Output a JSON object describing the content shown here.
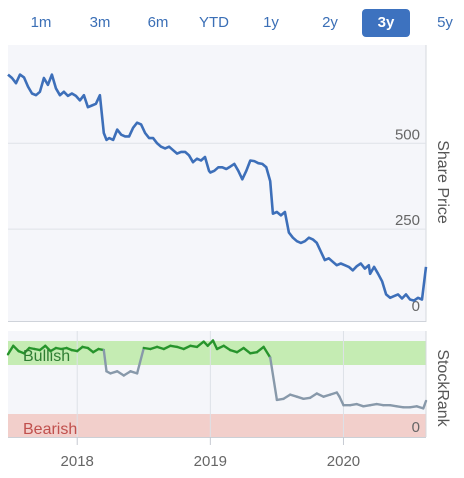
{
  "range_tabs": {
    "items": [
      "1m",
      "3m",
      "6m",
      "YTD",
      "1y",
      "2y",
      "3y",
      "5y"
    ],
    "active": "3y"
  },
  "colors": {
    "price_line": "#3d6fb9",
    "bullish_band": "#c5ecb3",
    "bearish_band": "#f2cfcb",
    "bullish_line": "#27942c",
    "neutral_line": "#8899aa",
    "bearish_text": "#c0504d",
    "axis_text": "#666666"
  },
  "chart_data": [
    {
      "type": "line",
      "ylabel": "Share Price",
      "ylim": [
        0,
        760
      ],
      "yticks": [
        0,
        250,
        500
      ],
      "x_range": [
        2017.48,
        2020.62
      ],
      "series": [
        {
          "x": [
            2017.48,
            2017.51,
            2017.54,
            2017.57,
            2017.6,
            2017.63,
            2017.66,
            2017.69,
            2017.72,
            2017.75,
            2017.78,
            2017.81,
            2017.84,
            2017.87,
            2017.9,
            2017.93,
            2017.96,
            2017.99,
            2018.02,
            2018.05,
            2018.08,
            2018.11,
            2018.14,
            2018.17,
            2018.2,
            2018.22,
            2018.24,
            2018.27,
            2018.3,
            2018.33,
            2018.36,
            2018.39,
            2018.42,
            2018.45,
            2018.48,
            2018.51,
            2018.54,
            2018.57,
            2018.6,
            2018.63,
            2018.66,
            2018.69,
            2018.72,
            2018.75,
            2018.78,
            2018.81,
            2018.84,
            2018.87,
            2018.9,
            2018.93,
            2018.96,
            2018.99,
            2019.0,
            2019.03,
            2019.06,
            2019.09,
            2019.12,
            2019.15,
            2019.18,
            2019.21,
            2019.24,
            2019.27,
            2019.3,
            2019.33,
            2019.36,
            2019.39,
            2019.42,
            2019.45,
            2019.47,
            2019.5,
            2019.53,
            2019.56,
            2019.59,
            2019.62,
            2019.65,
            2019.68,
            2019.71,
            2019.74,
            2019.77,
            2019.8,
            2019.83,
            2019.86,
            2019.89,
            2019.92,
            2019.95,
            2019.98,
            2020.01,
            2020.04,
            2020.07,
            2020.1,
            2020.13,
            2020.16,
            2020.19,
            2020.2,
            2020.23,
            2020.26,
            2020.29,
            2020.32,
            2020.35,
            2020.38,
            2020.41,
            2020.44,
            2020.47,
            2020.5,
            2020.53,
            2020.56,
            2020.59,
            2020.62
          ],
          "values": [
            700,
            690,
            675,
            700,
            692,
            665,
            645,
            640,
            650,
            690,
            670,
            700,
            660,
            640,
            650,
            638,
            645,
            638,
            625,
            640,
            605,
            610,
            615,
            640,
            530,
            510,
            515,
            510,
            540,
            525,
            520,
            520,
            545,
            560,
            555,
            530,
            515,
            515,
            500,
            490,
            485,
            490,
            480,
            470,
            475,
            475,
            465,
            445,
            455,
            450,
            460,
            420,
            415,
            420,
            430,
            430,
            425,
            432,
            440,
            420,
            395,
            420,
            450,
            448,
            442,
            440,
            430,
            390,
            295,
            300,
            290,
            300,
            240,
            225,
            215,
            210,
            215,
            225,
            220,
            210,
            185,
            160,
            165,
            155,
            145,
            150,
            145,
            140,
            130,
            142,
            150,
            135,
            145,
            120,
            140,
            120,
            98,
            60,
            50,
            55,
            60,
            48,
            60,
            45,
            42,
            50,
            45,
            140
          ]
        }
      ]
    },
    {
      "type": "line",
      "ylabel": "StockRank",
      "ylim": [
        0,
        100
      ],
      "bands": [
        "Bullish",
        "Bearish"
      ],
      "ytick": "0",
      "xticks": [
        "2018",
        "2019",
        "2020"
      ],
      "series": [
        {
          "x": [
            2017.48,
            2017.52,
            2017.56,
            2017.6,
            2017.64,
            2017.68,
            2017.72,
            2017.76,
            2017.8,
            2017.84,
            2017.88,
            2017.92,
            2017.96,
            2018.0,
            2018.04,
            2018.08,
            2018.12,
            2018.16,
            2018.2,
            2018.22,
            2018.25,
            2018.3,
            2018.35,
            2018.4,
            2018.45,
            2018.5,
            2018.55,
            2018.6,
            2018.65,
            2018.7,
            2018.75,
            2018.8,
            2018.85,
            2018.9,
            2018.95,
            2018.98,
            2019.02,
            2019.05,
            2019.1,
            2019.15,
            2019.2,
            2019.25,
            2019.3,
            2019.35,
            2019.4,
            2019.45,
            2019.5,
            2019.55,
            2019.6,
            2019.65,
            2019.7,
            2019.75,
            2019.8,
            2019.85,
            2019.9,
            2019.95,
            2019.97,
            2020.0,
            2020.05,
            2020.1,
            2020.15,
            2020.2,
            2020.25,
            2020.3,
            2020.35,
            2020.4,
            2020.45,
            2020.5,
            2020.55,
            2020.6,
            2020.62
          ],
          "values": [
            78,
            86,
            81,
            79,
            84,
            83,
            82,
            86,
            81,
            84,
            83,
            84,
            82,
            81,
            85,
            84,
            80,
            83,
            82,
            62,
            60,
            62,
            58,
            62,
            60,
            84,
            83,
            85,
            83,
            86,
            85,
            83,
            86,
            85,
            90,
            86,
            91,
            83,
            86,
            82,
            80,
            84,
            79,
            80,
            85,
            75,
            35,
            36,
            40,
            38,
            36,
            37,
            41,
            38,
            40,
            42,
            38,
            30,
            30,
            31,
            29,
            30,
            31,
            30,
            30,
            29,
            28,
            28,
            29,
            27,
            34
          ]
        }
      ]
    }
  ]
}
